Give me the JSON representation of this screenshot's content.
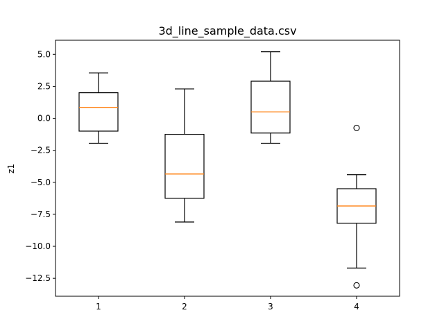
{
  "chart_data": {
    "type": "box",
    "title": "3d_line_sample_data.csv",
    "xlabel": "",
    "ylabel": "z1",
    "categories": [
      "1",
      "2",
      "3",
      "4"
    ],
    "xlim": [
      0.5,
      4.5
    ],
    "ylim": [
      -13.9,
      6.1
    ],
    "yticks": [
      5.0,
      2.5,
      0.0,
      -2.5,
      -5.0,
      -7.5,
      -10.0,
      -12.5
    ],
    "ytick_labels": [
      "5.0",
      "2.5",
      "0.0",
      "−2.5",
      "−5.0",
      "−7.5",
      "−10.0",
      "−12.5"
    ],
    "grid": false,
    "boxes": [
      {
        "category": "1",
        "whisker_low": -1.95,
        "q1": -1.0,
        "median": 0.85,
        "q3": 2.0,
        "whisker_high": 3.55,
        "outliers": []
      },
      {
        "category": "2",
        "whisker_low": -8.1,
        "q1": -6.25,
        "median": -4.35,
        "q3": -1.25,
        "whisker_high": 2.3,
        "outliers": []
      },
      {
        "category": "3",
        "whisker_low": -1.95,
        "q1": -1.15,
        "median": 0.5,
        "q3": 2.9,
        "whisker_high": 5.2,
        "outliers": []
      },
      {
        "category": "4",
        "whisker_low": -11.7,
        "q1": -8.2,
        "median": -6.85,
        "q3": -5.5,
        "whisker_high": -4.4,
        "outliers": [
          -0.75,
          -13.05
        ]
      }
    ],
    "colors": {
      "box": "#000000",
      "median": "#ff7f0e",
      "flier": "#000000"
    }
  }
}
